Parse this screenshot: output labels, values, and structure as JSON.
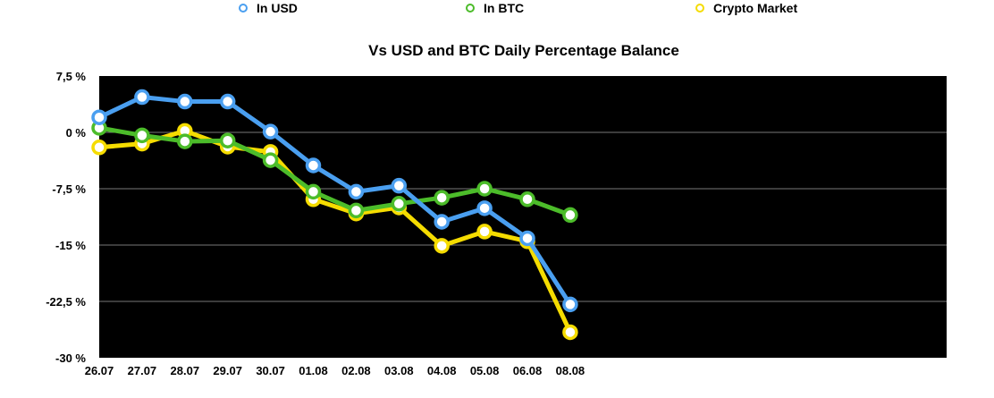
{
  "chart_data": {
    "type": "line",
    "title": "Vs USD and BTC Daily Percentage Balance",
    "categories": [
      "26.07",
      "27.07",
      "28.07",
      "29.07",
      "30.07",
      "01.08",
      "02.08",
      "03.08",
      "04.08",
      "05.08",
      "06.08",
      "08.08"
    ],
    "y_ticks": [
      "7,5 %",
      "0 %",
      "-7,5 %",
      "-15 %",
      "-22,5 %",
      "-30 %"
    ],
    "ylim": [
      -30,
      7.5
    ],
    "y_tick_values": [
      7.5,
      0,
      -7.5,
      -15,
      -22.5,
      -30
    ],
    "grid": true,
    "legend_position": "top",
    "background_color": "#000000",
    "series": [
      {
        "name": "In USD",
        "color": "#4a9ff0",
        "values": [
          2.0,
          4.7,
          4.1,
          4.1,
          0.1,
          -4.4,
          -7.9,
          -7.1,
          -11.9,
          -10.1,
          -14.1,
          -22.9
        ]
      },
      {
        "name": "In BTC",
        "color": "#4cbc2a",
        "values": [
          0.6,
          -0.4,
          -1.2,
          -1.1,
          -3.7,
          -7.9,
          -10.4,
          -9.5,
          -8.7,
          -7.5,
          -8.9,
          -11.0
        ]
      },
      {
        "name": "Crypto Market",
        "color": "#f5dc00",
        "values": [
          -2.0,
          -1.5,
          0.2,
          -1.9,
          -2.6,
          -8.9,
          -10.8,
          -10.0,
          -15.1,
          -13.2,
          -14.5,
          -26.6
        ]
      }
    ]
  }
}
